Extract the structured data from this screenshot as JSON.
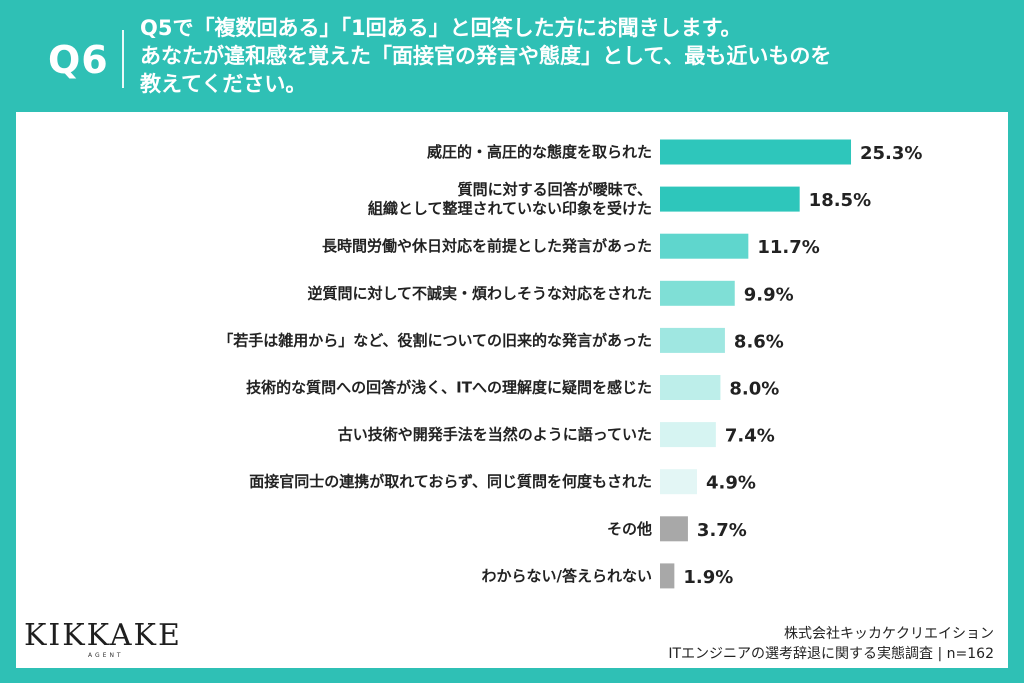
{
  "header": {
    "qnum": "Q6",
    "question_lines": [
      "Q5で「複数回ある」「1回ある」と回答した方にお聞きします。",
      "あなたが違和感を覚えた「面接官の発言や態度」として、最も近いものを",
      "教えてください。"
    ]
  },
  "chart_data": {
    "type": "bar",
    "orientation": "horizontal",
    "categories": [
      [
        "威圧的・高圧的な態度を取られた"
      ],
      [
        "質問に対する回答が曖昧で、",
        "組織として整理されていない印象を受けた"
      ],
      [
        "長時間労働や休日対応を前提とした発言があった"
      ],
      [
        "逆質問に対して不誠実・煩わしそうな対応をされた"
      ],
      [
        "「若手は雑用から」など、役割についての旧来的な発言があった"
      ],
      [
        "技術的な質問への回答が浅く、ITへの理解度に疑問を感じた"
      ],
      [
        "古い技術や開発手法を当然のように語っていた"
      ],
      [
        "面接官同士の連携が取れておらず、同じ質問を何度もされた"
      ],
      [
        "その他"
      ],
      [
        "わからない/答えられない"
      ]
    ],
    "values": [
      25.3,
      18.5,
      11.7,
      9.9,
      8.6,
      8.0,
      7.4,
      4.9,
      3.7,
      1.9
    ],
    "value_labels": [
      "25.3%",
      "18.5%",
      "11.7%",
      "9.9%",
      "8.6%",
      "8.0%",
      "7.4%",
      "4.9%",
      "3.7%",
      "1.9%"
    ],
    "colors": [
      "#2ec6bb",
      "#2ec6bb",
      "#5fd6cd",
      "#7fdfd6",
      "#9fe7e1",
      "#bdeeea",
      "#d6f4f2",
      "#e3f6f5",
      "#a8a8a8",
      "#a8a8a8"
    ],
    "grid": false,
    "legend": "none"
  },
  "footer": {
    "logo": "KIKKAKE",
    "logo_sub": "AGENT",
    "company": "株式会社キッカケクリエイション",
    "survey": "ITエンジニアの選考辞退に関する実態調査 | n=162"
  }
}
